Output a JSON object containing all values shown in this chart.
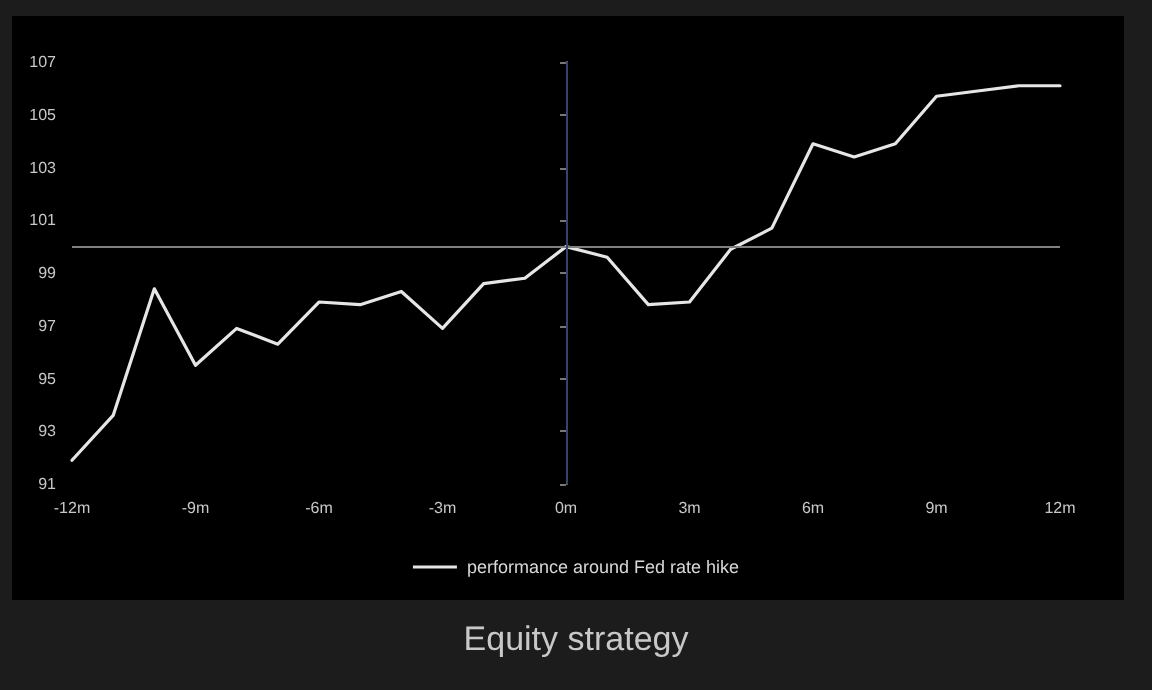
{
  "chart_data": {
    "type": "line",
    "title": "Equity strategy",
    "x": [
      -12,
      -11,
      -10,
      -9,
      -8,
      -7,
      -6,
      -5,
      -4,
      -3,
      -2,
      -1,
      0,
      1,
      2,
      3,
      4,
      5,
      6,
      7,
      8,
      9,
      10,
      11,
      12
    ],
    "series": [
      {
        "name": "performance around Fed rate hike",
        "color": "#e6e6e6",
        "values": [
          91.9,
          93.6,
          98.4,
          95.5,
          96.9,
          96.3,
          97.9,
          97.8,
          98.3,
          96.9,
          98.6,
          98.8,
          100,
          99.6,
          97.8,
          97.9,
          99.9,
          100.7,
          103.9,
          103.4,
          103.9,
          105.7,
          105.9,
          106.1,
          106.1
        ]
      }
    ],
    "xlim": [
      -12,
      12
    ],
    "xticks": [
      {
        "value": -12,
        "label": "-12m"
      },
      {
        "value": -9,
        "label": "-9m"
      },
      {
        "value": -6,
        "label": "-6m"
      },
      {
        "value": -3,
        "label": "-3m"
      },
      {
        "value": 0,
        "label": "0m"
      },
      {
        "value": 3,
        "label": "3m"
      },
      {
        "value": 6,
        "label": "6m"
      },
      {
        "value": 9,
        "label": "9m"
      },
      {
        "value": 12,
        "label": "12m"
      }
    ],
    "ylim": [
      91,
      107
    ],
    "yticks": [
      91,
      93,
      95,
      97,
      99,
      101,
      103,
      105,
      107
    ],
    "ref_lines": [
      {
        "axis": "y",
        "value": 100,
        "color": "#808080"
      },
      {
        "axis": "x",
        "value": 0,
        "color": "#34456a"
      }
    ],
    "grid": false,
    "legend": "bottom",
    "marker": "none",
    "line_style": "solid"
  }
}
